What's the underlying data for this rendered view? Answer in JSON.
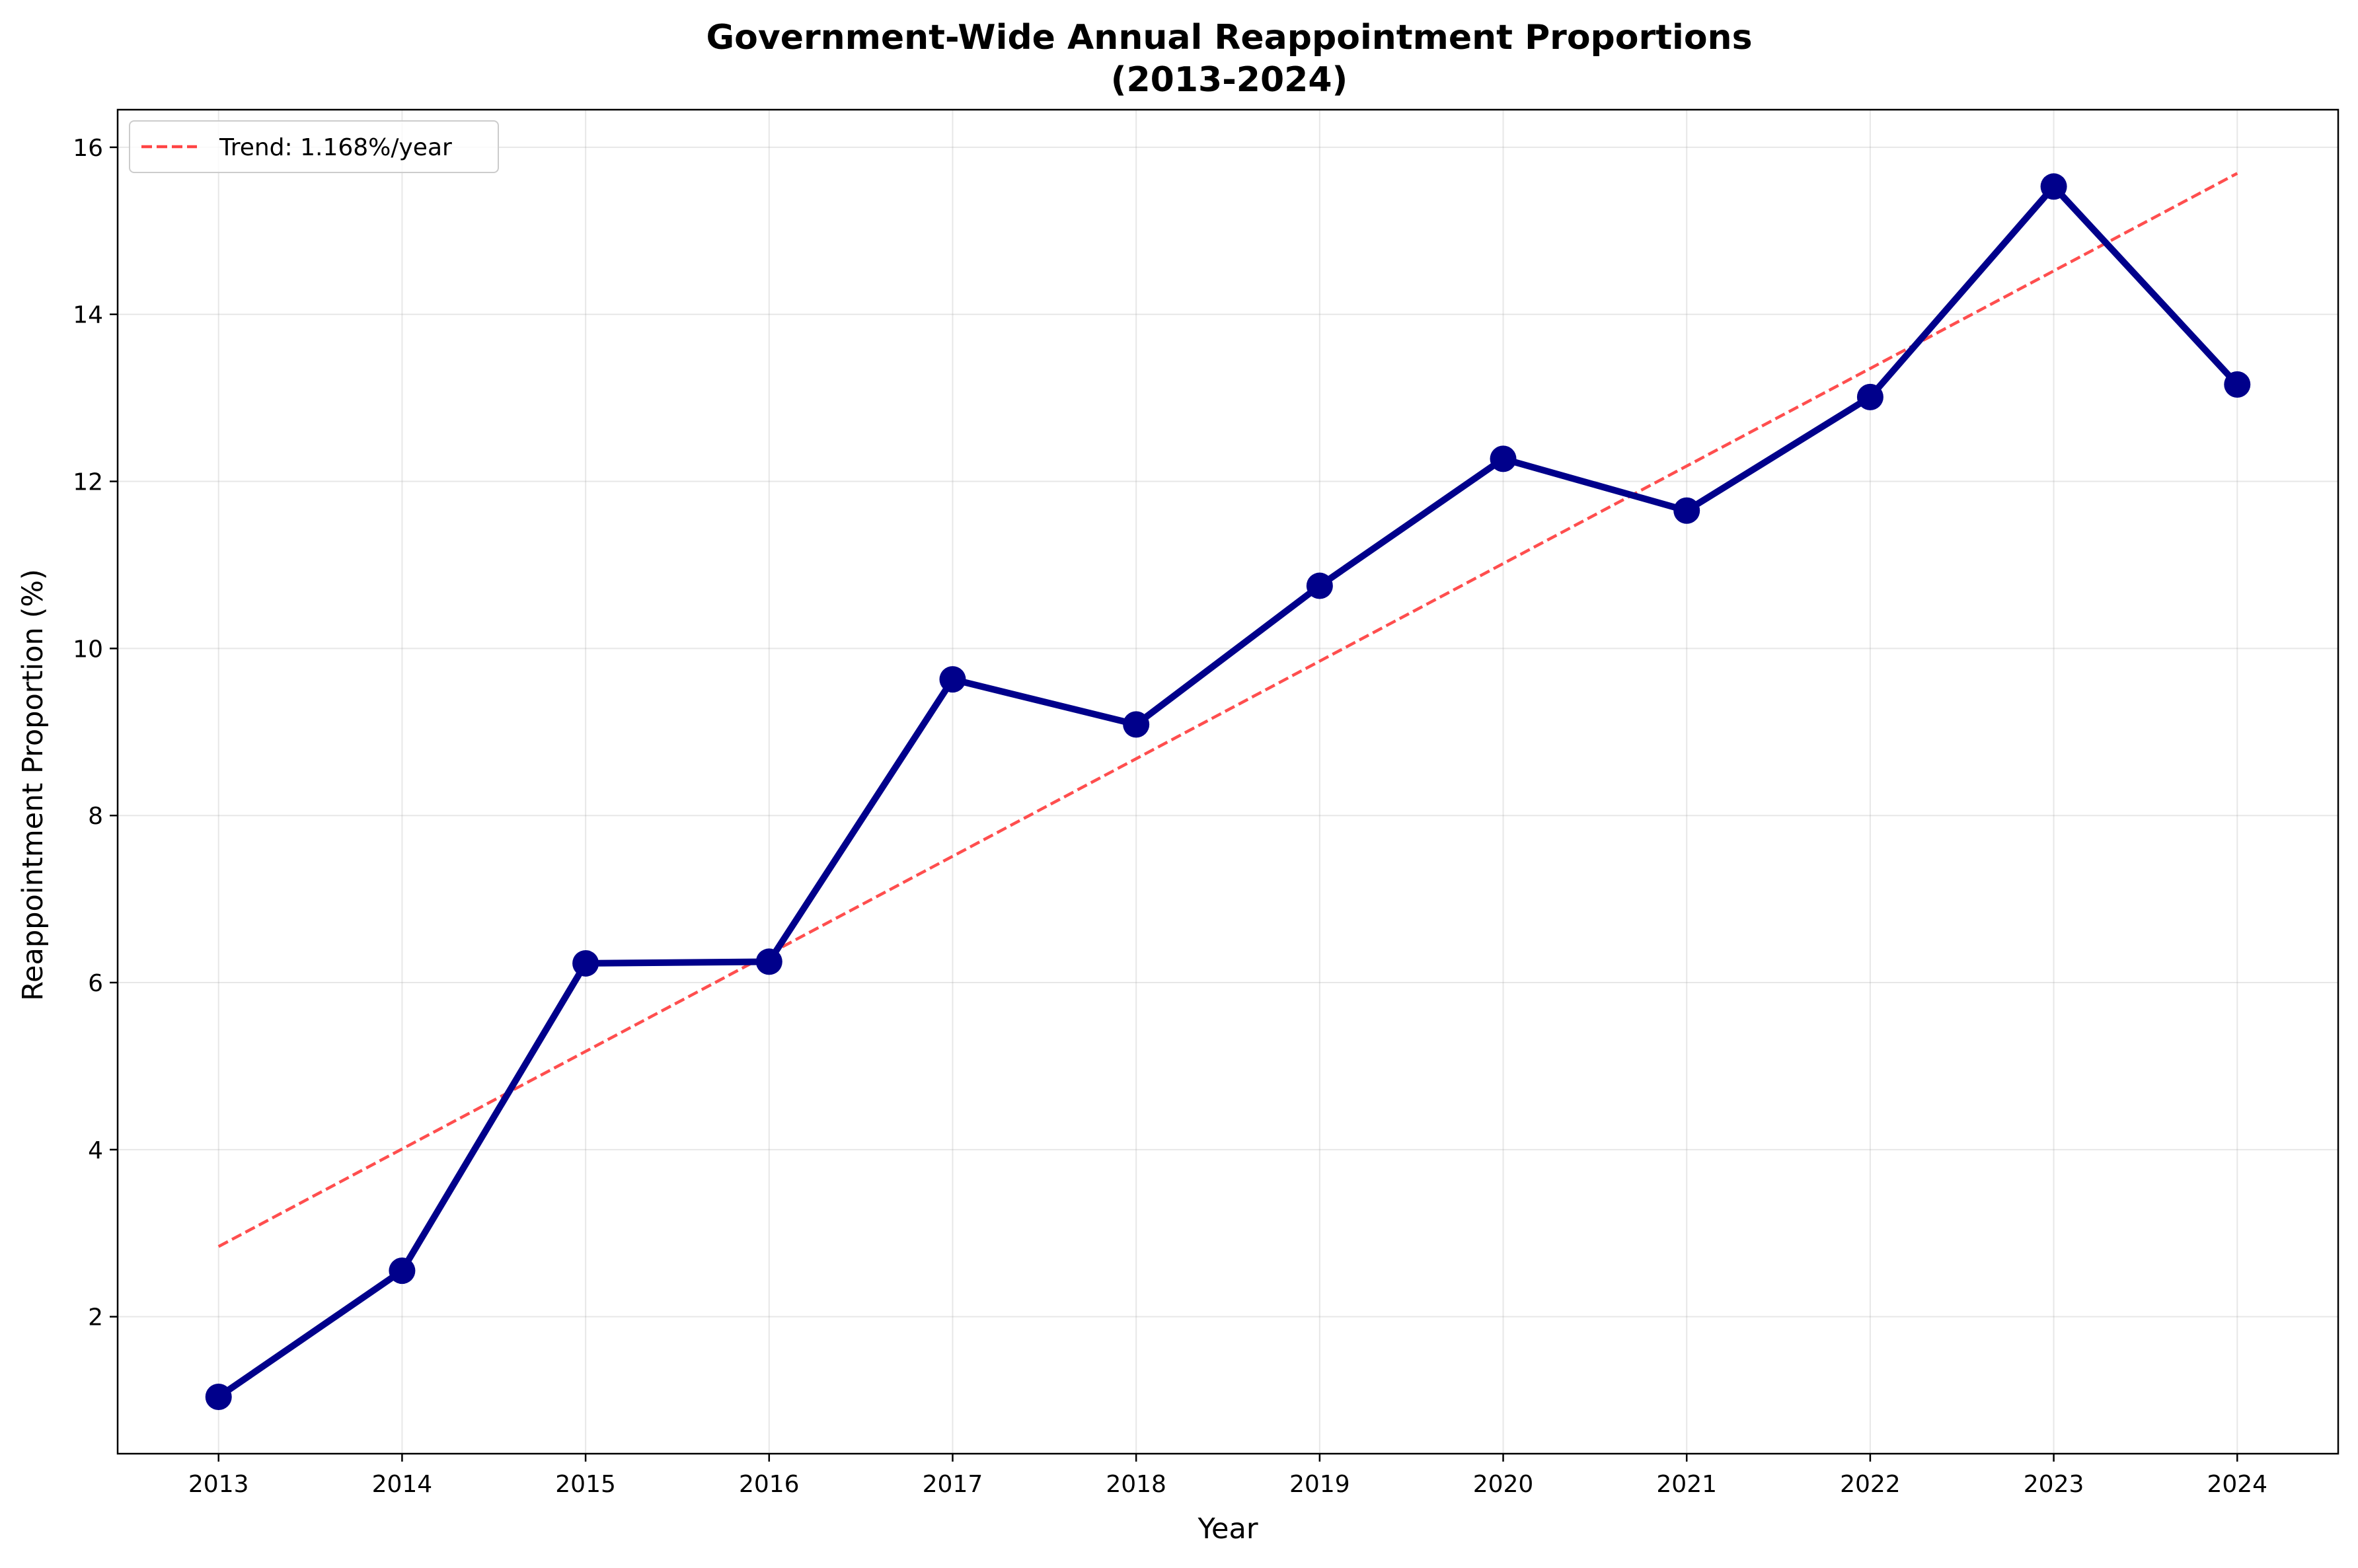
{
  "chart_data": {
    "type": "line",
    "title": "Government-Wide Annual Reappointment Proportions",
    "subtitle": "(2013-2024)",
    "xlabel": "Year",
    "ylabel": "Reappointment Proportion (%)",
    "x": [
      2013,
      2014,
      2015,
      2016,
      2017,
      2018,
      2019,
      2020,
      2021,
      2022,
      2023,
      2024
    ],
    "xticks": [
      "2013",
      "2014",
      "2015",
      "2016",
      "2017",
      "2018",
      "2019",
      "2020",
      "2021",
      "2022",
      "2023",
      "2024"
    ],
    "yticks": [
      "2",
      "4",
      "6",
      "8",
      "10",
      "12",
      "14",
      "16"
    ],
    "xlim": [
      2012.45,
      2024.55
    ],
    "ylim": [
      0.36,
      16.45
    ],
    "grid": true,
    "legend_position": "top-left",
    "series": [
      {
        "values": [
          1.04,
          2.55,
          6.23,
          6.25,
          9.63,
          9.09,
          10.75,
          12.27,
          11.65,
          13.01,
          15.53,
          13.16
        ],
        "color": "#00008b",
        "marker": "circle"
      }
    ],
    "trend": {
      "name": "Trend: 1.168%/year",
      "slope": 1.168,
      "start_value": 2.84,
      "color": "#ff4444",
      "style": "dashed"
    }
  }
}
